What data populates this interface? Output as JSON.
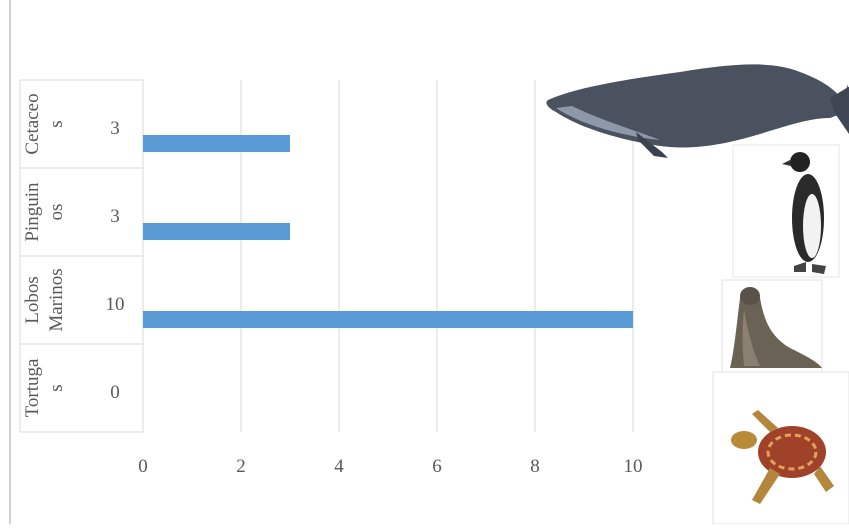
{
  "chart_data": {
    "type": "bar",
    "orientation": "horizontal",
    "categories": [
      "Cetaceos",
      "Pinguinos",
      "Lobos Marinos",
      "Tortugas"
    ],
    "category_label_lines": [
      [
        "Cetaceo",
        "s"
      ],
      [
        "Pinguin",
        "os"
      ],
      [
        "Lobos",
        "Marinos"
      ],
      [
        "Tortuga",
        "s"
      ]
    ],
    "values": [
      3,
      3,
      10,
      0
    ],
    "data_labels": [
      "3",
      "3",
      "10",
      "0"
    ],
    "xlim": [
      0,
      10
    ],
    "x_ticks": [
      0,
      2,
      4,
      6,
      8,
      10
    ],
    "x_tick_labels": [
      "0",
      "2",
      "4",
      "6",
      "8",
      "10"
    ],
    "gridlines": true,
    "bar_color": "#5b9bd5",
    "images": [
      "whale-illustration",
      "penguin-photo",
      "sea-lion-photo",
      "sea-turtle-photo"
    ]
  }
}
